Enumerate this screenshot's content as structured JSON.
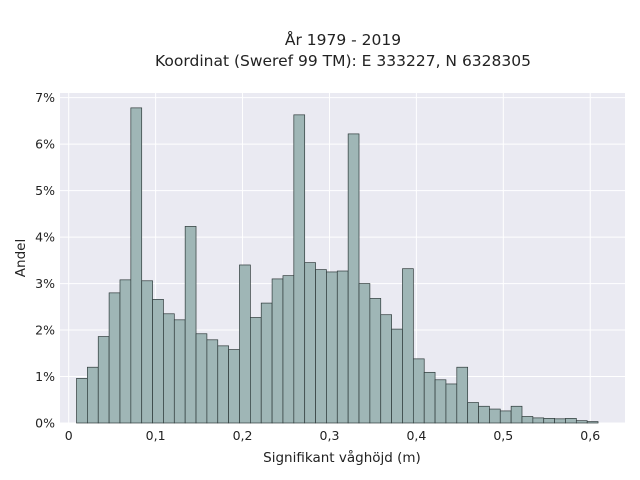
{
  "chart_data": {
    "type": "bar",
    "title_lines": [
      "År 1979 - 2019",
      "Koordinat (Sweref 99 TM): E 333227, N 6328305"
    ],
    "xlabel": "Signifikant våghöjd (m)",
    "ylabel": "Andel",
    "xlim": [
      -0.01,
      0.64
    ],
    "ylim": [
      0,
      7.1
    ],
    "grid": true,
    "bin_width": 0.0125,
    "x_ticks": [
      {
        "value": 0,
        "label": "0"
      },
      {
        "value": 0.1,
        "label": "0,1"
      },
      {
        "value": 0.2,
        "label": "0,2"
      },
      {
        "value": 0.3,
        "label": "0,3"
      },
      {
        "value": 0.4,
        "label": "0,4"
      },
      {
        "value": 0.5,
        "label": "0,5"
      },
      {
        "value": 0.6,
        "label": "0,6"
      }
    ],
    "y_ticks": [
      {
        "value": 0,
        "label": "0%"
      },
      {
        "value": 1,
        "label": "1%"
      },
      {
        "value": 2,
        "label": "2%"
      },
      {
        "value": 3,
        "label": "3%"
      },
      {
        "value": 4,
        "label": "4%"
      },
      {
        "value": 5,
        "label": "5%"
      },
      {
        "value": 6,
        "label": "6%"
      },
      {
        "value": 7,
        "label": "7%"
      }
    ],
    "bin_starts": [
      0.009,
      0.0215,
      0.034,
      0.0465,
      0.059,
      0.0715,
      0.084,
      0.0965,
      0.109,
      0.1215,
      0.134,
      0.1465,
      0.159,
      0.1715,
      0.184,
      0.1965,
      0.209,
      0.2215,
      0.234,
      0.2465,
      0.259,
      0.2715,
      0.284,
      0.2965,
      0.309,
      0.3215,
      0.334,
      0.3465,
      0.359,
      0.3715,
      0.384,
      0.3965,
      0.409,
      0.4215,
      0.434,
      0.4465,
      0.459,
      0.4715,
      0.484,
      0.4965,
      0.509,
      0.5215,
      0.534,
      0.5465,
      0.559,
      0.5715,
      0.584,
      0.5965
    ],
    "values": [
      0.96,
      1.2,
      1.86,
      2.8,
      3.08,
      6.78,
      3.06,
      2.66,
      2.35,
      2.22,
      4.23,
      1.92,
      1.79,
      1.66,
      1.58,
      3.4,
      2.27,
      2.58,
      3.1,
      3.17,
      6.63,
      3.45,
      3.3,
      3.25,
      3.27,
      6.22,
      3.0,
      2.68,
      2.33,
      2.02,
      3.32,
      1.38,
      1.09,
      0.93,
      0.84,
      1.2,
      0.44,
      0.36,
      0.3,
      0.26,
      0.36,
      0.14,
      0.11,
      0.1,
      0.09,
      0.1,
      0.05,
      0.03
    ]
  }
}
